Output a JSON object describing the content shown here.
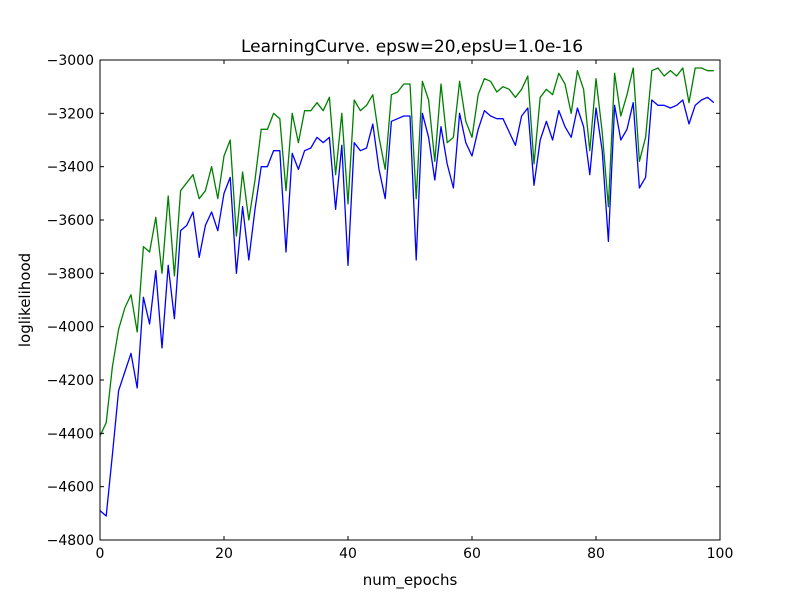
{
  "chart_data": {
    "type": "line",
    "title": "LearningCurve. epsw=20,epsU=1.0e-16",
    "xlabel": "num_epochs",
    "ylabel": "loglikelihood",
    "xlim": [
      0,
      100
    ],
    "ylim": [
      -4800,
      -3000
    ],
    "xticks": [
      0,
      20,
      40,
      60,
      80,
      100
    ],
    "yticks": [
      -4800,
      -4600,
      -4400,
      -4200,
      -4000,
      -3800,
      -3600,
      -3400,
      -3200,
      -3000
    ],
    "tick_labels": {
      "x": [
        "0",
        "20",
        "40",
        "60",
        "80",
        "100"
      ],
      "y": [
        "−4800",
        "−4600",
        "−4400",
        "−4200",
        "−4000",
        "−3800",
        "−3600",
        "−3400",
        "−3200",
        "−3000"
      ]
    },
    "grid": false,
    "legend": "none",
    "series": [
      {
        "color": "#0000ff",
        "x": [
          0,
          1,
          2,
          3,
          4,
          5,
          6,
          7,
          8,
          9,
          10,
          11,
          12,
          13,
          14,
          15,
          16,
          17,
          18,
          19,
          20,
          21,
          22,
          23,
          24,
          25,
          26,
          27,
          28,
          29,
          30,
          31,
          32,
          33,
          34,
          35,
          36,
          37,
          38,
          39,
          40,
          41,
          42,
          43,
          44,
          45,
          46,
          47,
          48,
          49,
          50,
          51,
          52,
          53,
          54,
          55,
          56,
          57,
          58,
          59,
          60,
          61,
          62,
          63,
          64,
          65,
          66,
          67,
          68,
          69,
          70,
          71,
          72,
          73,
          74,
          75,
          76,
          77,
          78,
          79,
          80,
          81,
          82,
          83,
          84,
          85,
          86,
          87,
          88,
          89,
          90,
          91,
          92,
          93,
          94,
          95,
          96,
          97,
          98,
          99
        ],
        "values": [
          -4690,
          -4710,
          -4480,
          -4240,
          -4170,
          -4100,
          -4230,
          -3890,
          -3990,
          -3790,
          -4080,
          -3770,
          -3970,
          -3640,
          -3620,
          -3570,
          -3740,
          -3620,
          -3570,
          -3640,
          -3500,
          -3440,
          -3800,
          -3550,
          -3750,
          -3560,
          -3400,
          -3400,
          -3340,
          -3340,
          -3720,
          -3350,
          -3410,
          -3340,
          -3330,
          -3290,
          -3310,
          -3290,
          -3560,
          -3320,
          -3770,
          -3310,
          -3340,
          -3330,
          -3240,
          -3410,
          -3520,
          -3230,
          -3220,
          -3210,
          -3210,
          -3750,
          -3200,
          -3290,
          -3450,
          -3250,
          -3390,
          -3480,
          -3200,
          -3310,
          -3360,
          -3260,
          -3190,
          -3210,
          -3220,
          -3220,
          -3270,
          -3320,
          -3210,
          -3180,
          -3470,
          -3300,
          -3230,
          -3300,
          -3190,
          -3250,
          -3290,
          -3180,
          -3250,
          -3430,
          -3180,
          -3340,
          -3680,
          -3170,
          -3300,
          -3260,
          -3160,
          -3480,
          -3440,
          -3150,
          -3170,
          -3170,
          -3180,
          -3170,
          -3150,
          -3240,
          -3170,
          -3150,
          -3140,
          -3160
        ]
      },
      {
        "color": "#008000",
        "x": [
          0,
          1,
          2,
          3,
          4,
          5,
          6,
          7,
          8,
          9,
          10,
          11,
          12,
          13,
          14,
          15,
          16,
          17,
          18,
          19,
          20,
          21,
          22,
          23,
          24,
          25,
          26,
          27,
          28,
          29,
          30,
          31,
          32,
          33,
          34,
          35,
          36,
          37,
          38,
          39,
          40,
          41,
          42,
          43,
          44,
          45,
          46,
          47,
          48,
          49,
          50,
          51,
          52,
          53,
          54,
          55,
          56,
          57,
          58,
          59,
          60,
          61,
          62,
          63,
          64,
          65,
          66,
          67,
          68,
          69,
          70,
          71,
          72,
          73,
          74,
          75,
          76,
          77,
          78,
          79,
          80,
          81,
          82,
          83,
          84,
          85,
          86,
          87,
          88,
          89,
          90,
          91,
          92,
          93,
          94,
          95,
          96,
          97,
          98,
          99
        ],
        "values": [
          -4410,
          -4360,
          -4150,
          -4010,
          -3930,
          -3880,
          -4020,
          -3700,
          -3720,
          -3590,
          -3800,
          -3510,
          -3810,
          -3490,
          -3460,
          -3430,
          -3520,
          -3490,
          -3400,
          -3520,
          -3360,
          -3300,
          -3660,
          -3420,
          -3600,
          -3450,
          -3260,
          -3260,
          -3200,
          -3220,
          -3490,
          -3200,
          -3310,
          -3190,
          -3190,
          -3160,
          -3190,
          -3140,
          -3430,
          -3200,
          -3540,
          -3150,
          -3190,
          -3170,
          -3130,
          -3290,
          -3410,
          -3130,
          -3120,
          -3090,
          -3090,
          -3520,
          -3080,
          -3150,
          -3380,
          -3090,
          -3310,
          -3290,
          -3080,
          -3230,
          -3290,
          -3130,
          -3070,
          -3080,
          -3120,
          -3100,
          -3110,
          -3140,
          -3110,
          -3060,
          -3390,
          -3140,
          -3110,
          -3130,
          -3050,
          -3090,
          -3200,
          -3040,
          -3110,
          -3340,
          -3070,
          -3270,
          -3550,
          -3050,
          -3210,
          -3130,
          -3030,
          -3380,
          -3290,
          -3040,
          -3030,
          -3060,
          -3040,
          -3060,
          -3030,
          -3160,
          -3030,
          -3030,
          -3040,
          -3040
        ]
      }
    ]
  }
}
